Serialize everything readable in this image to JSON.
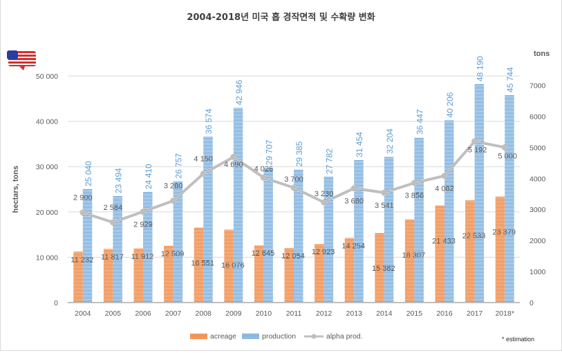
{
  "chart_data": {
    "type": "bar",
    "title": "2004-2018년 미국 홉 경작면적 및 수확량 변화",
    "categories": [
      "2004",
      "2005",
      "2006",
      "2007",
      "2008",
      "2009",
      "2010",
      "2011",
      "2012",
      "2013",
      "2014",
      "2015",
      "2016",
      "2017",
      "2018*"
    ],
    "series": [
      {
        "name": "acreage",
        "type": "bar",
        "axis": "left",
        "color": "#ed7d31",
        "values": [
          11232,
          11817,
          11912,
          12509,
          16551,
          16076,
          12645,
          12054,
          12923,
          14254,
          15382,
          18307,
          21433,
          22533,
          23379
        ],
        "labels": [
          "11 232",
          "11 817",
          "11 912",
          "12 509",
          "16 551",
          "16 076",
          "12 645",
          "12 054",
          "12 923",
          "14 254",
          "15 382",
          "18 307",
          "21 433",
          "22 533",
          "23 379"
        ]
      },
      {
        "name": "production",
        "type": "bar",
        "axis": "left",
        "color": "#5b9bd5",
        "values": [
          25040,
          23494,
          24410,
          26757,
          36574,
          42946,
          29707,
          29385,
          27782,
          31454,
          32204,
          36447,
          40206,
          48190,
          45744
        ],
        "labels": [
          "25 040",
          "23 494",
          "24 410",
          "26 757",
          "36 574",
          "42 946",
          "29 707",
          "29 385",
          "27 782",
          "31 454",
          "32 204",
          "36 447",
          "40 206",
          "48 190",
          "45 744"
        ]
      },
      {
        "name": "alpha prod.",
        "type": "line",
        "axis": "right",
        "color": "#bfbfbf",
        "values": [
          2900,
          2584,
          2929,
          3280,
          4150,
          4690,
          4026,
          3700,
          3230,
          3680,
          3541,
          3856,
          4082,
          5192,
          5000
        ],
        "labels": [
          "2 900",
          "2 584",
          "2 929",
          "3 280",
          "4 150",
          "4 690",
          "4 026",
          "3 700",
          "3 230",
          "3 680",
          "3 541",
          "3 856",
          "4 082",
          "5 192",
          "5 000"
        ]
      }
    ],
    "ylabel": "hectars, tons",
    "y2label": "tons",
    "ylim": [
      0,
      50000
    ],
    "y2lim": [
      0,
      7300
    ],
    "yticks": [
      "0",
      "10 000",
      "20 000",
      "30 000",
      "40 000",
      "50 000"
    ],
    "yticks_values": [
      0,
      10000,
      20000,
      30000,
      40000,
      50000
    ],
    "y2ticks": [
      "0",
      "1000",
      "2000",
      "3000",
      "4000",
      "5000",
      "6000",
      "7000"
    ],
    "y2ticks_values": [
      0,
      1000,
      2000,
      3000,
      4000,
      5000,
      6000,
      7000
    ],
    "grid": true,
    "legend": {
      "position": "bottom",
      "entries": [
        "acreage",
        "production",
        "alpha prod."
      ]
    },
    "annotation": "* estimation"
  },
  "flag_icon": "usa-map-flag-icon"
}
